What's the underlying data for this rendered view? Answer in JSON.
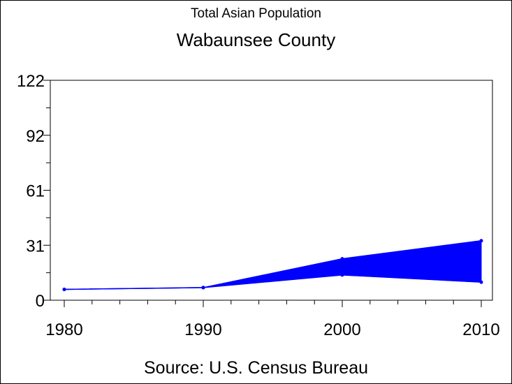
{
  "header": {
    "title": "Total Asian Population",
    "subtitle": "Wabaunsee County"
  },
  "footer": {
    "source": "Source: U.S. Census Bureau"
  },
  "colors": {
    "series": "#0000ff",
    "axis": "#000000",
    "background": "#ffffff"
  },
  "chart_data": {
    "type": "area",
    "title": "Total Asian Population",
    "subtitle": "Wabaunsee County",
    "xlabel": "",
    "ylabel": "",
    "x": [
      1980,
      1990,
      2000,
      2010
    ],
    "x_ticks": [
      "1980",
      "1990",
      "2000",
      "2010"
    ],
    "y_ticks": [
      "0",
      "31",
      "61",
      "92",
      "122"
    ],
    "ylim": [
      0,
      122
    ],
    "xlim": [
      1980,
      2010
    ],
    "grid": false,
    "series": [
      {
        "values_upper": [
          6,
          7,
          23,
          33
        ]
      },
      {
        "values_lower": [
          6,
          7,
          14,
          10
        ]
      }
    ],
    "band": {
      "upper": [
        6,
        7,
        23,
        33
      ],
      "lower": [
        6,
        7,
        14,
        10
      ]
    },
    "source": "Source: U.S. Census Bureau"
  }
}
